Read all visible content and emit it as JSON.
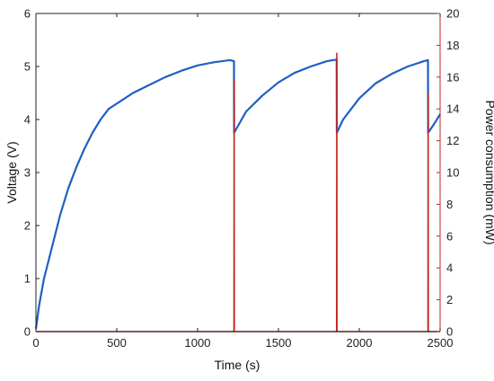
{
  "chart_data": {
    "type": "line",
    "xlabel": "Time (s)",
    "ylabel_left": "Voltage (V)",
    "ylabel_right": "Power consumption (mW)",
    "xlim": [
      0,
      2500
    ],
    "ylim_left": [
      0,
      6
    ],
    "ylim_right": [
      0,
      20
    ],
    "x_ticks": [
      "0",
      "500",
      "1000",
      "1500",
      "2000",
      "2500"
    ],
    "y_left_ticks": [
      "0",
      "1",
      "2",
      "3",
      "4",
      "5",
      "6"
    ],
    "y_right_ticks": [
      "0",
      "2",
      "4",
      "6",
      "8",
      "10",
      "12",
      "14",
      "16",
      "18",
      "20"
    ],
    "grid": false,
    "colors": {
      "voltage": "#2060c0",
      "power": "#c0281e",
      "right_axis": "#c0281e"
    },
    "series": [
      {
        "axis": "left",
        "x": [
          0,
          20,
          50,
          100,
          150,
          200,
          250,
          300,
          350,
          400,
          450,
          500,
          600,
          700,
          800,
          900,
          1000,
          1100,
          1200,
          1225,
          1226,
          1300,
          1400,
          1500,
          1600,
          1700,
          1800,
          1860,
          1861,
          1900,
          2000,
          2100,
          2200,
          2300,
          2400,
          2425,
          2426,
          2470,
          2500
        ],
        "y": [
          0.05,
          0.5,
          1.0,
          1.6,
          2.2,
          2.7,
          3.1,
          3.45,
          3.75,
          4.0,
          4.2,
          4.3,
          4.5,
          4.65,
          4.8,
          4.92,
          5.02,
          5.08,
          5.12,
          5.1,
          3.75,
          4.15,
          4.45,
          4.7,
          4.88,
          5.0,
          5.1,
          5.13,
          3.75,
          4.0,
          4.4,
          4.68,
          4.86,
          5.0,
          5.1,
          5.12,
          3.75,
          3.95,
          4.1
        ]
      },
      {
        "axis": "right",
        "x": [
          0,
          1225,
          1226,
          1227,
          1860,
          1861,
          1862,
          2425,
          2426,
          2427,
          2500
        ],
        "y": [
          0,
          0,
          15.8,
          0,
          0,
          17.5,
          0,
          0,
          15.0,
          0,
          0
        ]
      }
    ]
  }
}
